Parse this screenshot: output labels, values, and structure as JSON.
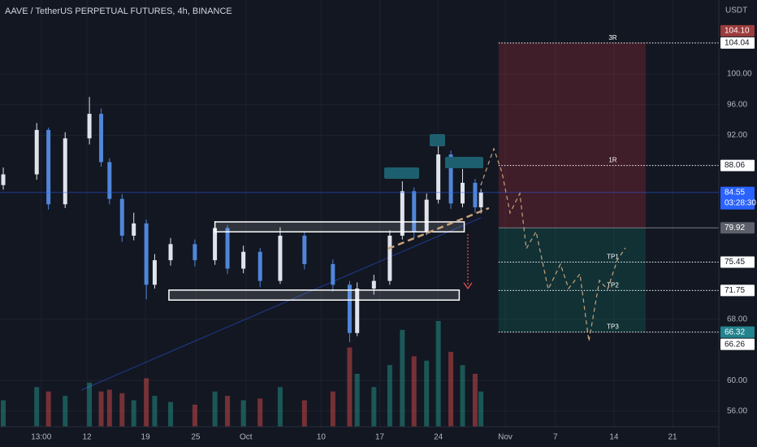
{
  "chart_data": {
    "type": "candlestick",
    "title": "AAVE / TetherUS PERPETUAL FUTURES, 4h, BINANCE",
    "y_axis_label": "USDT",
    "xlim": [
      1.61,
      87.53
    ],
    "ylim": [
      53.98,
      109.65
    ],
    "grid": true,
    "up_color": "#e0e3eb",
    "down_color": "#4f86d9",
    "xticks": [
      {
        "value": 6.54,
        "label": "13:00"
      },
      {
        "value": 12,
        "label": "12"
      },
      {
        "value": 19,
        "label": "19"
      },
      {
        "value": 25,
        "label": "25"
      },
      {
        "value": 31,
        "label": "Oct"
      },
      {
        "value": 40,
        "label": "10"
      },
      {
        "value": 47,
        "label": "17"
      },
      {
        "value": 54,
        "label": "24"
      },
      {
        "value": 62,
        "label": "Nov"
      },
      {
        "value": 68,
        "label": "7"
      },
      {
        "value": 75,
        "label": "14"
      },
      {
        "value": 82,
        "label": "21"
      }
    ],
    "yticks": [
      {
        "value": 100,
        "label": "100.00"
      },
      {
        "value": 96,
        "label": "96.00"
      },
      {
        "value": 92,
        "label": "92.00"
      },
      {
        "value": 68,
        "label": "68.00"
      },
      {
        "value": 60,
        "label": "60.00"
      },
      {
        "value": 56,
        "label": "56.00"
      }
    ],
    "x": [
      2,
      6,
      7.4,
      9.4,
      12.3,
      13.7,
      14.7,
      16.2,
      17.6,
      19.1,
      20.1,
      22,
      24.9,
      27.3,
      28.8,
      30.7,
      32.7,
      35.1,
      38,
      41.4,
      43.4,
      44.3,
      46.3,
      48.2,
      49.7,
      51.1,
      52.6,
      54,
      55.5,
      56.9,
      58.4,
      59.1
    ],
    "open": [
      85.5,
      86.9,
      92.7,
      83,
      91.6,
      94.8,
      88.5,
      83.7,
      78.9,
      80.5,
      72.5,
      75.7,
      77.8,
      75.7,
      79.9,
      74.6,
      76.8,
      73,
      78.9,
      75.2,
      72.5,
      66.2,
      72,
      73,
      78.9,
      84.7,
      79.4,
      83.6,
      89.5,
      83.1,
      85.8,
      82.6
    ],
    "high": [
      87.8,
      93.6,
      93,
      92.4,
      97,
      95.5,
      89,
      84.3,
      81.9,
      81,
      76.5,
      78.6,
      78.4,
      80.8,
      80.3,
      77.6,
      77.3,
      80,
      79.4,
      75.8,
      73,
      72.8,
      73.8,
      79.6,
      86,
      85.2,
      84.4,
      90.6,
      90,
      87.6,
      86.3,
      85
    ],
    "low": [
      84.9,
      86.2,
      82.3,
      82.5,
      90.8,
      87.9,
      83,
      78.1,
      78.3,
      70.6,
      72,
      75,
      74.9,
      75.1,
      73.9,
      74,
      72.2,
      72.6,
      74.5,
      71.6,
      65,
      65.8,
      71.2,
      72.5,
      78.4,
      78.6,
      79,
      83.1,
      82.4,
      82.6,
      81.9,
      81.8
    ],
    "close": [
      86.9,
      92.7,
      83,
      91.6,
      94.8,
      88.5,
      83.7,
      78.9,
      80.5,
      72.5,
      75.7,
      77.8,
      75.7,
      79.9,
      74.6,
      76.8,
      73,
      78.9,
      75.2,
      72.5,
      66.2,
      72,
      73,
      78.9,
      84.7,
      79.4,
      83.6,
      89.5,
      83.1,
      85.8,
      82.6,
      84.55
    ],
    "volume": [
      30,
      45,
      40,
      35,
      50,
      40,
      42,
      38,
      30,
      55,
      35,
      28,
      25,
      40,
      35,
      30,
      32,
      45,
      30,
      40,
      90,
      60,
      45,
      70,
      110,
      80,
      75,
      120,
      85,
      70,
      60,
      40
    ],
    "position": {
      "x": [
        61.2,
        78.8
      ],
      "stop": 104.04,
      "entry": 79.92,
      "target": 66.32
    },
    "levels": [
      {
        "label": "3R",
        "value": 104.04
      },
      {
        "label": "1R",
        "value": 88.06
      },
      {
        "label": "TP1",
        "value": 75.45
      },
      {
        "label": "TP2",
        "value": 71.75
      },
      {
        "label": "TP3",
        "value": 66.32
      }
    ],
    "zones": [
      {
        "x": [
          27.3,
          57.1
        ],
        "top": 80.7,
        "bottom": 79.4
      },
      {
        "x": [
          21.8,
          56.5
        ],
        "top": 71.8,
        "bottom": 70.5
      }
    ],
    "price_labels": [
      {
        "value": 104.04,
        "label": "104.04",
        "color": "#ffffff"
      },
      {
        "value": 104.1,
        "label": "104.10",
        "color": "#9c3c3c"
      },
      {
        "value": 88.06,
        "label": "88.06",
        "color": "#ffffff"
      },
      {
        "value": 84.55,
        "label": "84.55",
        "color": "#2962ff"
      },
      {
        "value": 79.92,
        "label": "79.92",
        "color": "#5d606b"
      },
      {
        "value": 75.45,
        "label": "75.45",
        "color": "#ffffff"
      },
      {
        "value": 71.75,
        "label": "71.75",
        "color": "#ffffff"
      },
      {
        "value": 66.32,
        "label": "66.32",
        "color": "#22848f"
      },
      {
        "value": 66.26,
        "label": "66.26",
        "color": "#ffffff"
      }
    ],
    "countdown": "03:28:30"
  }
}
